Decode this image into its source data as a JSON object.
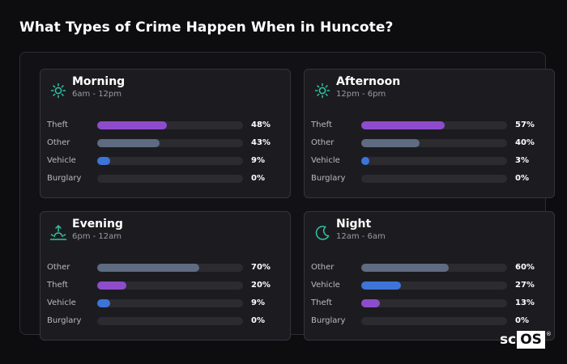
{
  "title": "What Types of Crime Happen When in Huncote?",
  "logo": {
    "left": "sc",
    "boxed": "OS",
    "mark": "®"
  },
  "colors": {
    "teal_icon": "#2fc3a6",
    "Theft": "#8e4ccc",
    "Other": "#5f6b80",
    "Vehicle": "#3d74d8",
    "Burglary": "#2b2b30"
  },
  "chart_data": [
    {
      "type": "bar",
      "title": "Morning",
      "subtitle": "6am - 12pm",
      "icon": "sun-icon",
      "categories": [
        "Theft",
        "Other",
        "Vehicle",
        "Burglary"
      ],
      "values": [
        48,
        43,
        9,
        0
      ],
      "labels": [
        "48%",
        "43%",
        "9%",
        "0%"
      ],
      "xlim": [
        0,
        100
      ]
    },
    {
      "type": "bar",
      "title": "Afternoon",
      "subtitle": "12pm - 6pm",
      "icon": "sun-icon",
      "categories": [
        "Theft",
        "Other",
        "Vehicle",
        "Burglary"
      ],
      "values": [
        57,
        40,
        3,
        0
      ],
      "labels": [
        "57%",
        "40%",
        "3%",
        "0%"
      ],
      "xlim": [
        0,
        100
      ]
    },
    {
      "type": "bar",
      "title": "Evening",
      "subtitle": "6pm - 12am",
      "icon": "sunset-icon",
      "categories": [
        "Other",
        "Theft",
        "Vehicle",
        "Burglary"
      ],
      "values": [
        70,
        20,
        9,
        0
      ],
      "labels": [
        "70%",
        "20%",
        "9%",
        "0%"
      ],
      "xlim": [
        0,
        100
      ]
    },
    {
      "type": "bar",
      "title": "Night",
      "subtitle": "12am - 6am",
      "icon": "moon-icon",
      "categories": [
        "Other",
        "Vehicle",
        "Theft",
        "Burglary"
      ],
      "values": [
        60,
        27,
        13,
        0
      ],
      "labels": [
        "60%",
        "27%",
        "13%",
        "0%"
      ],
      "xlim": [
        0,
        100
      ]
    }
  ]
}
